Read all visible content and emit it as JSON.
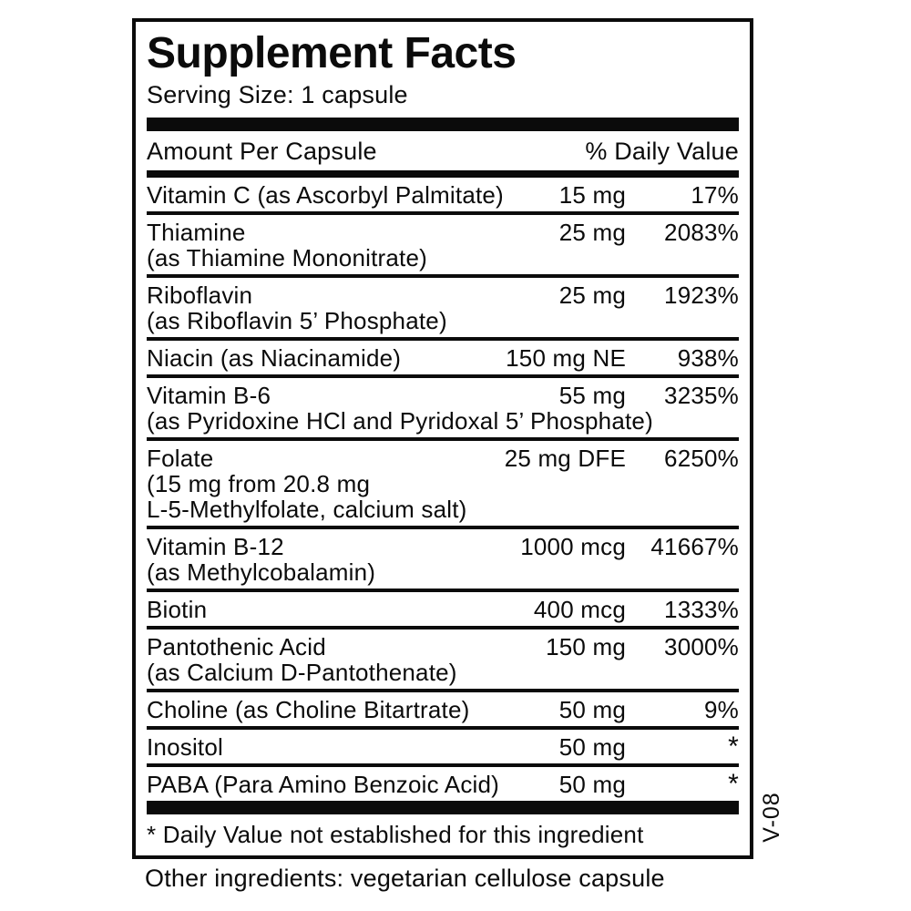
{
  "panel": {
    "title": "Supplement Facts",
    "serving_size": "Serving Size: 1 capsule",
    "columns": {
      "amount_header": "Amount Per Capsule",
      "dv_header": "% Daily Value"
    },
    "rows": [
      {
        "line1": "Vitamin C (as Ascorbyl Palmitate)",
        "amount": "15 mg",
        "dv": "17%"
      },
      {
        "line1": "Thiamine",
        "line2": "(as Thiamine Mononitrate)",
        "amount": "25 mg",
        "dv": "2083%"
      },
      {
        "line1": "Riboflavin",
        "line2": "(as Riboflavin 5’ Phosphate)",
        "amount": "25 mg",
        "dv": "1923%"
      },
      {
        "line1": "Niacin (as Niacinamide)",
        "amount": "150 mg NE",
        "dv": "938%"
      },
      {
        "line1": "Vitamin B-6",
        "line2": "(as Pyridoxine HCl and Pyridoxal 5’ Phosphate)",
        "amount": "55 mg",
        "dv": "3235%"
      },
      {
        "line1": "Folate",
        "line2": "(15 mg from 20.8 mg",
        "line3": "L-5-Methylfolate, calcium salt)",
        "amount": "25 mg DFE",
        "dv": "6250%"
      },
      {
        "line1": "Vitamin B-12",
        "line2": "(as Methylcobalamin)",
        "amount": "1000 mcg",
        "dv": "41667%"
      },
      {
        "line1": "Biotin",
        "amount": "400 mcg",
        "dv": "1333%"
      },
      {
        "line1": "Pantothenic Acid",
        "line2": "(as Calcium D-Pantothenate)",
        "amount": "150 mg",
        "dv": "3000%"
      },
      {
        "line1": "Choline (as Choline Bitartrate)",
        "amount": "50 mg",
        "dv": "9%"
      },
      {
        "line1": "Inositol",
        "amount": "50 mg",
        "dv": "*"
      },
      {
        "line1": "PABA (Para Amino Benzoic Acid)",
        "amount": "50 mg",
        "dv": "*"
      }
    ],
    "footnote": "* Daily Value not established for this ingredient",
    "side_code": "V-08"
  },
  "below_panel": {
    "other_ingredients": "Other ingredients: vegetarian cellulose capsule"
  },
  "colors": {
    "ink": "#0b0b0b",
    "background": "#ffffff"
  }
}
